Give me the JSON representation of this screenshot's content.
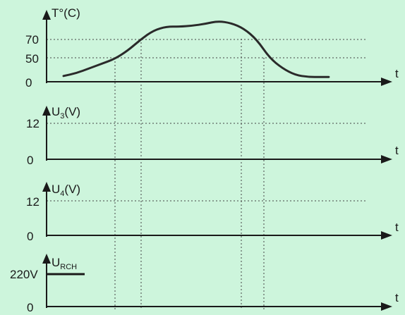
{
  "chart_data": [
    {
      "type": "line",
      "ylabel": "T°(C)",
      "xlabel": "t",
      "y_ticks": [
        "70",
        "50",
        "0"
      ],
      "series": [
        {
          "x": [
            0,
            5,
            10,
            15,
            20,
            25,
            30,
            35,
            40,
            45,
            50,
            55,
            60,
            65,
            70,
            75,
            80,
            85,
            90,
            95,
            100,
            103
          ],
          "values": [
            12,
            18,
            28,
            38,
            48,
            58,
            70,
            80,
            84,
            84,
            85,
            87,
            90,
            88,
            82,
            70,
            50,
            28,
            14,
            10,
            10,
            10
          ]
        }
      ]
    },
    {
      "type": "line",
      "ylabel": "U₃(V)",
      "xlabel": "t",
      "y_ticks": [
        "12",
        "0"
      ],
      "series": []
    },
    {
      "type": "line",
      "ylabel": "U₄(V)",
      "xlabel": "t",
      "y_ticks": [
        "12",
        "0"
      ],
      "series": []
    },
    {
      "type": "line",
      "ylabel": "U_RCH",
      "xlabel": "t",
      "y_ticks": [
        "220V",
        "0"
      ],
      "series": [
        {
          "x": [
            0,
            10
          ],
          "values": [
            220,
            220
          ]
        }
      ]
    }
  ],
  "labels": {
    "p1_y": "T°(C)",
    "p1_t70": "70",
    "p1_t50": "50",
    "p1_t0": "0",
    "p1_x": "t",
    "p2_y_main": "U",
    "p2_y_sub": "3",
    "p2_y_unit": "(V)",
    "p2_t12": "12",
    "p2_t0": "0",
    "p2_x": "t",
    "p3_y_main": "U",
    "p3_y_sub": "4",
    "p3_y_unit": "(V)",
    "p3_t12": "12",
    "p3_t0": "0",
    "p3_x": "t",
    "p4_y_main": "U",
    "p4_y_sub": "RCH",
    "p4_t220": "220V",
    "p4_t0": "0",
    "p4_x": "t"
  }
}
